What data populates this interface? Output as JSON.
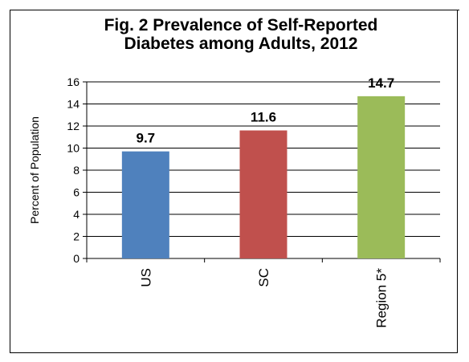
{
  "chart_data": {
    "type": "bar",
    "title": "Fig. 2  Prevalence of Self-Reported Diabetes among Adults, 2012",
    "title_lines": [
      "Fig. 2  Prevalence of Self-Reported",
      "Diabetes among Adults, 2012"
    ],
    "xlabel": "",
    "ylabel": "Percent of Population",
    "categories": [
      "US",
      "SC",
      "Region 5*"
    ],
    "values": [
      9.7,
      11.6,
      14.7
    ],
    "data_labels": [
      "9.7",
      "11.6",
      "14.7"
    ],
    "colors": [
      "#4f81bd",
      "#c0504d",
      "#9bbb59"
    ],
    "ylim": [
      0,
      16
    ],
    "yticks": [
      0,
      2,
      4,
      6,
      8,
      10,
      12,
      14,
      16
    ],
    "grid": true,
    "legend": "none"
  }
}
